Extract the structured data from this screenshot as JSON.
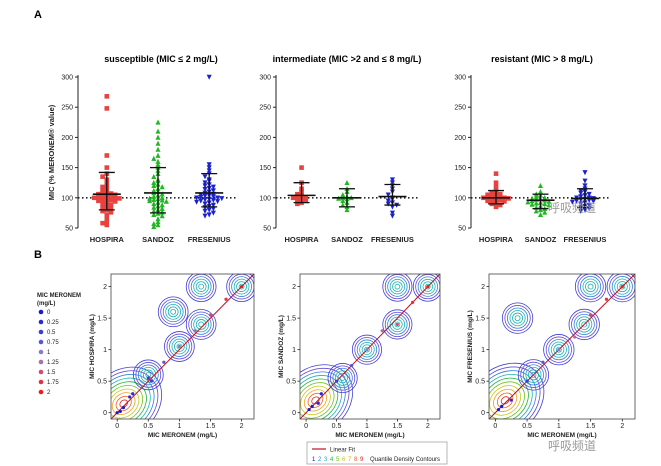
{
  "panel_labels": {
    "a": "A",
    "b": "B"
  },
  "watermark": {
    "text": "呼吸频道"
  },
  "colors": {
    "hospira": "#e8423f",
    "sandoz": "#22b524",
    "fresenius": "#1c22c9",
    "ref_line": "#222222",
    "fit_line": "#c01020"
  },
  "chart_data": [
    {
      "type": "scatter",
      "title": "susceptible (MIC ≤ 2 mg/L)",
      "ylabel": "MIC (% MERONEM® value)",
      "ylim": [
        50,
        300
      ],
      "yticks": [
        50,
        100,
        150,
        200,
        250,
        300
      ],
      "reference_line": 100,
      "categories": [
        "HOSPIRA",
        "SANDOZ",
        "FRESENIUS"
      ],
      "series": [
        {
          "name": "HOSPIRA",
          "marker": "square",
          "color": "#e8423f",
          "mean": 106,
          "sd_low": 80,
          "sd_high": 142,
          "values": [
            268,
            248,
            170,
            150,
            140,
            135,
            130,
            125,
            120,
            118,
            115,
            112,
            110,
            108,
            107,
            106,
            105,
            104,
            103,
            102,
            101,
            100,
            100,
            99,
            98,
            97,
            96,
            95,
            94,
            92,
            90,
            88,
            86,
            84,
            82,
            80,
            78,
            76,
            72,
            68,
            62,
            58,
            55
          ]
        },
        {
          "name": "SANDOZ",
          "marker": "triangle-up",
          "color": "#22b524",
          "mean": 108,
          "sd_low": 75,
          "sd_high": 150,
          "values": [
            225,
            210,
            200,
            190,
            180,
            170,
            165,
            160,
            155,
            150,
            145,
            140,
            135,
            130,
            128,
            125,
            122,
            120,
            118,
            115,
            112,
            110,
            108,
            106,
            104,
            102,
            100,
            99,
            98,
            97,
            96,
            95,
            94,
            92,
            90,
            88,
            86,
            84,
            82,
            80,
            78,
            76,
            74,
            72,
            70,
            65,
            60,
            57,
            55,
            52
          ]
        },
        {
          "name": "FRESENIUS",
          "marker": "triangle-down",
          "color": "#1c22c9",
          "mean": 108,
          "sd_low": 85,
          "sd_high": 140,
          "values": [
            300,
            155,
            150,
            145,
            140,
            135,
            130,
            128,
            125,
            122,
            120,
            118,
            116,
            114,
            112,
            110,
            108,
            106,
            105,
            104,
            103,
            102,
            101,
            100,
            100,
            99,
            98,
            97,
            96,
            95,
            94,
            93,
            92,
            90,
            88,
            86,
            84,
            82,
            80,
            78,
            75,
            72,
            70
          ]
        }
      ]
    },
    {
      "type": "scatter",
      "title": "intermediate (MIC >2 and ≤ 8 mg/L)",
      "ylim": [
        50,
        300
      ],
      "yticks": [
        50,
        100,
        150,
        200,
        250,
        300
      ],
      "reference_line": 100,
      "categories": [
        "HOSPIRA",
        "SANDOZ",
        "FRESENIUS"
      ],
      "series": [
        {
          "name": "HOSPIRA",
          "marker": "square",
          "color": "#e8423f",
          "mean": 104,
          "sd_low": 92,
          "sd_high": 125,
          "values": [
            150,
            125,
            115,
            110,
            106,
            104,
            102,
            100,
            100,
            98,
            96,
            95,
            92,
            90
          ]
        },
        {
          "name": "SANDOZ",
          "marker": "triangle-up",
          "color": "#22b524",
          "mean": 100,
          "sd_low": 85,
          "sd_high": 115,
          "values": [
            125,
            115,
            110,
            105,
            102,
            100,
            100,
            99,
            98,
            95,
            92,
            88,
            85,
            80
          ]
        },
        {
          "name": "FRESENIUS",
          "marker": "triangle-down",
          "color": "#1c22c9",
          "mean": 102,
          "sd_low": 88,
          "sd_high": 122,
          "values": [
            130,
            125,
            120,
            115,
            110,
            105,
            100,
            98,
            95,
            92,
            90,
            88,
            85,
            75,
            70
          ]
        }
      ]
    },
    {
      "type": "scatter",
      "title": "resistant (MIC > 8 mg/L)",
      "ylim": [
        50,
        300
      ],
      "yticks": [
        50,
        100,
        150,
        200,
        250,
        300
      ],
      "reference_line": 100,
      "categories": [
        "HOSPIRA",
        "SANDOZ",
        "FRESENIUS"
      ],
      "series": [
        {
          "name": "HOSPIRA",
          "marker": "square",
          "color": "#e8423f",
          "mean": 100,
          "sd_low": 90,
          "sd_high": 112,
          "values": [
            140,
            125,
            118,
            112,
            110,
            108,
            106,
            105,
            104,
            103,
            102,
            101,
            100,
            100,
            99,
            98,
            97,
            96,
            95,
            94,
            92,
            90,
            88,
            85
          ]
        },
        {
          "name": "SANDOZ",
          "marker": "triangle-up",
          "color": "#22b524",
          "mean": 96,
          "sd_low": 82,
          "sd_high": 106,
          "values": [
            120,
            110,
            106,
            104,
            102,
            100,
            99,
            98,
            97,
            96,
            95,
            94,
            93,
            92,
            91,
            90,
            89,
            88,
            86,
            84,
            82,
            80,
            78,
            76,
            72
          ]
        },
        {
          "name": "FRESENIUS",
          "marker": "triangle-down",
          "color": "#1c22c9",
          "mean": 99,
          "sd_low": 84,
          "sd_high": 115,
          "values": [
            142,
            128,
            120,
            115,
            112,
            110,
            108,
            106,
            104,
            102,
            100,
            100,
            99,
            98,
            97,
            96,
            95,
            94,
            93,
            92,
            90,
            88,
            86,
            84,
            82,
            80,
            78
          ]
        }
      ]
    },
    {
      "type": "scatter",
      "subtype": "density-contour",
      "ylabel": "MIC HOSPIRA (mg/L)",
      "xlabel": "MIC MERONEM (mg/L)",
      "xlim": [
        -0.1,
        2.2
      ],
      "ylim": [
        -0.1,
        2.2
      ],
      "xticks": [
        0,
        0.5,
        1,
        1.5,
        2
      ],
      "yticks": [
        0,
        0.5,
        1,
        1.5,
        2
      ],
      "points": [
        [
          0,
          0
        ],
        [
          0.05,
          0.02
        ],
        [
          0.1,
          0.08
        ],
        [
          0.2,
          0.25
        ],
        [
          0.25,
          0.3
        ],
        [
          0.5,
          0.55
        ],
        [
          0.55,
          0.5
        ],
        [
          0.75,
          0.8
        ],
        [
          1,
          1.05
        ],
        [
          1.25,
          1.3
        ],
        [
          1.5,
          1.55
        ],
        [
          1.75,
          1.8
        ],
        [
          2,
          2
        ]
      ],
      "fit": {
        "name": "Linear Fit",
        "slope": 1.0,
        "intercept": 0.0
      },
      "contour_centers": [
        [
          0.1,
          0.1
        ],
        [
          0.5,
          0.6
        ],
        [
          1.0,
          1.05
        ],
        [
          1.35,
          1.4
        ],
        [
          1.35,
          2.0
        ],
        [
          2.0,
          2.0
        ],
        [
          0.9,
          1.6
        ]
      ]
    },
    {
      "type": "scatter",
      "subtype": "density-contour",
      "ylabel": "MIC SANDOZ (mg/L)",
      "xlabel": "MIC MERONEM (mg/L)",
      "xlim": [
        -0.1,
        2.2
      ],
      "ylim": [
        -0.1,
        2.2
      ],
      "xticks": [
        0,
        0.5,
        1,
        1.5,
        2
      ],
      "yticks": [
        0,
        0.5,
        1,
        1.5,
        2
      ],
      "points": [
        [
          0.05,
          0.05
        ],
        [
          0.1,
          0.1
        ],
        [
          0.2,
          0.15
        ],
        [
          0.25,
          0.3
        ],
        [
          0.5,
          0.5
        ],
        [
          0.75,
          0.75
        ],
        [
          1,
          1.0
        ],
        [
          1.25,
          1.3
        ],
        [
          1.5,
          1.4
        ],
        [
          1.75,
          1.75
        ],
        [
          2,
          2
        ]
      ],
      "fit": {
        "name": "Linear Fit",
        "slope": 1.0,
        "intercept": 0.0
      },
      "contour_centers": [
        [
          0.15,
          0.15
        ],
        [
          0.6,
          0.55
        ],
        [
          1.0,
          1.0
        ],
        [
          1.5,
          1.4
        ],
        [
          1.5,
          2.0
        ],
        [
          2.0,
          2.0
        ]
      ]
    },
    {
      "type": "scatter",
      "subtype": "density-contour",
      "ylabel": "MIC FRESENIUS (mg/L)",
      "xlabel": "MIC MERONEM (mg/L)",
      "xlim": [
        -0.1,
        2.2
      ],
      "ylim": [
        -0.1,
        2.2
      ],
      "xticks": [
        0,
        0.5,
        1,
        1.5,
        2
      ],
      "yticks": [
        0,
        0.5,
        1,
        1.5,
        2
      ],
      "points": [
        [
          0.05,
          0.05
        ],
        [
          0.1,
          0.1
        ],
        [
          0.25,
          0.2
        ],
        [
          0.5,
          0.5
        ],
        [
          0.75,
          0.8
        ],
        [
          1,
          1.0
        ],
        [
          1.25,
          1.2
        ],
        [
          1.5,
          1.55
        ],
        [
          1.75,
          1.8
        ],
        [
          2,
          2
        ]
      ],
      "fit": {
        "name": "Linear Fit",
        "slope": 1.0,
        "intercept": 0.0
      },
      "contour_centers": [
        [
          0.15,
          0.15
        ],
        [
          0.6,
          0.6
        ],
        [
          1.0,
          1.0
        ],
        [
          1.4,
          1.4
        ],
        [
          1.5,
          2.0
        ],
        [
          2.0,
          2.0
        ],
        [
          0.35,
          1.5
        ]
      ]
    }
  ],
  "legend_left": {
    "title": "MIC MERONEM (mg/L)",
    "items": [
      {
        "label": "0",
        "color": "#1a1acb"
      },
      {
        "label": "0.25",
        "color": "#2a2ad0"
      },
      {
        "label": "0.5",
        "color": "#3c3cd4"
      },
      {
        "label": "0.75",
        "color": "#5858d6"
      },
      {
        "label": "1",
        "color": "#8a7cc8"
      },
      {
        "label": "1.25",
        "color": "#b06aa8"
      },
      {
        "label": "1.5",
        "color": "#d04c6c"
      },
      {
        "label": "1.75",
        "color": "#e2323c"
      },
      {
        "label": "2",
        "color": "#ef1c1c"
      }
    ]
  },
  "legend_bottom": {
    "fit_label": "Linear Fit",
    "contour_label": "Quantile Density Contours",
    "scale": [
      {
        "label": "1",
        "color": "#1a1acb"
      },
      {
        "label": "2",
        "color": "#2f7fe0"
      },
      {
        "label": "3",
        "color": "#1fb0b0"
      },
      {
        "label": "4",
        "color": "#1fb340"
      },
      {
        "label": "5",
        "color": "#6cc21c"
      },
      {
        "label": "6",
        "color": "#c8c81c"
      },
      {
        "label": "7",
        "color": "#f0a020"
      },
      {
        "label": "8",
        "color": "#f06020"
      },
      {
        "label": "9",
        "color": "#e02020"
      }
    ]
  }
}
